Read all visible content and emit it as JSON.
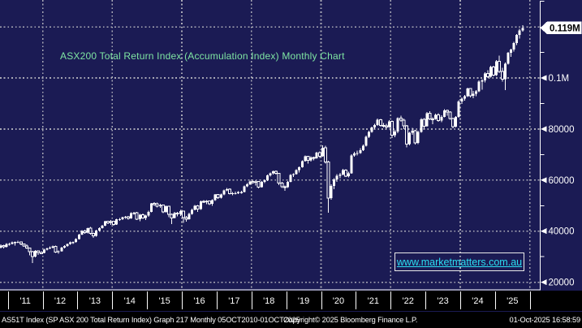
{
  "colors": {
    "background": "#1b1b54",
    "candle": "#ffffff",
    "grid": "#a9a9b6",
    "title_green": "#7fe6a3",
    "link_cyan": "#2bdff2",
    "axis_text": "#ffffff",
    "band_bg": "#000000",
    "tag_bg": "#ffffff",
    "tag_text": "#000000"
  },
  "title": {
    "text": "ASX200 Total Return Index (Accumulation Index) Monthly Chart"
  },
  "watermark": {
    "text": "www.marketmatters.com.au"
  },
  "y_axis": {
    "labels": [
      {
        "value": 20000,
        "text": "20000"
      },
      {
        "value": 40000,
        "text": "40000"
      },
      {
        "value": 60000,
        "text": "60000"
      },
      {
        "value": 80000,
        "text": "80000"
      },
      {
        "value": 100000,
        "text": "0.1M"
      }
    ],
    "minor_tick_values": [
      30000,
      50000,
      70000,
      90000,
      110000,
      130000
    ],
    "last_price": {
      "value": 119600,
      "label": "0.119M"
    }
  },
  "x_axis": {
    "year_labels": [
      "'11",
      "'12",
      "'13",
      "'14",
      "'15",
      "'16",
      "'17",
      "'18",
      "'19",
      "'20",
      "'21",
      "'22",
      "'23",
      "'24",
      "'25"
    ]
  },
  "status_bar": {
    "left": "AS51T Index (SP ASX 200 Total Return Index) Graph 217  Monthly 05OCT2010-01OCT2025",
    "center": "Copyright© 2025 Bloomberg Finance L.P.",
    "right": "01-Oct-2025 16:58:59"
  },
  "chart_data": {
    "type": "candlestick",
    "title": "ASX200 Total Return Index (Accumulation Index) Monthly Chart",
    "instrument": "AS51T Index (SP ASX 200 Total Return Index)",
    "frequency": "monthly",
    "range": "05OCT2010-01OCT2025",
    "months_start": "2010-10",
    "last_price": 119600,
    "ylim": [
      17000,
      130500
    ],
    "grid_values": [
      20000,
      40000,
      60000,
      80000,
      100000,
      120000
    ],
    "legend_position": "none",
    "ohlc": [
      [
        33600,
        34800,
        33200,
        34400
      ],
      [
        34400,
        34700,
        33300,
        33800
      ],
      [
        33800,
        35300,
        33500,
        35000
      ],
      [
        35000,
        35400,
        34400,
        35000
      ],
      [
        35000,
        35900,
        34800,
        35600
      ],
      [
        35600,
        35900,
        34300,
        35700
      ],
      [
        35700,
        36200,
        35300,
        35800
      ],
      [
        35800,
        36000,
        34500,
        34900
      ],
      [
        34900,
        35100,
        33900,
        34200
      ],
      [
        34200,
        34800,
        33000,
        33400
      ],
      [
        33400,
        33600,
        30600,
        32000
      ],
      [
        32000,
        32300,
        27500,
        30000
      ],
      [
        30000,
        32600,
        29700,
        32200
      ],
      [
        32200,
        32500,
        30700,
        31600
      ],
      [
        31600,
        32100,
        31000,
        31500
      ],
      [
        31500,
        33100,
        31300,
        32800
      ],
      [
        32800,
        33600,
        32500,
        33200
      ],
      [
        33200,
        34000,
        32900,
        33600
      ],
      [
        33600,
        34400,
        33300,
        34100
      ],
      [
        34100,
        34300,
        31500,
        31800
      ],
      [
        31800,
        32400,
        31200,
        32100
      ],
      [
        32100,
        33800,
        31900,
        33500
      ],
      [
        33500,
        34500,
        33300,
        34200
      ],
      [
        34200,
        35200,
        33900,
        34900
      ],
      [
        34900,
        35900,
        34700,
        35600
      ],
      [
        35600,
        36000,
        34900,
        35700
      ],
      [
        35700,
        37200,
        35500,
        36900
      ],
      [
        36900,
        39000,
        36800,
        38700
      ],
      [
        38700,
        40400,
        38500,
        40100
      ],
      [
        40100,
        40600,
        39000,
        39400
      ],
      [
        39400,
        41400,
        39100,
        41100
      ],
      [
        41100,
        41600,
        38700,
        39100
      ],
      [
        39100,
        39400,
        37400,
        38100
      ],
      [
        38100,
        40500,
        37900,
        40200
      ],
      [
        40200,
        41500,
        39900,
        41200
      ],
      [
        41200,
        42500,
        41000,
        42100
      ],
      [
        42100,
        44100,
        41900,
        43800
      ],
      [
        43800,
        44100,
        42700,
        43200
      ],
      [
        43200,
        44300,
        42500,
        43900
      ],
      [
        43900,
        44100,
        42200,
        42600
      ],
      [
        42600,
        44900,
        42400,
        44600
      ],
      [
        44600,
        45100,
        44000,
        44700
      ],
      [
        44700,
        45700,
        44400,
        45400
      ],
      [
        45400,
        46000,
        44900,
        45700
      ],
      [
        45700,
        46000,
        44500,
        45000
      ],
      [
        45000,
        47300,
        44800,
        47000
      ],
      [
        47000,
        47600,
        46400,
        47200
      ],
      [
        47200,
        47500,
        44400,
        44700
      ],
      [
        44700,
        46800,
        43900,
        46500
      ],
      [
        46500,
        46900,
        44900,
        45200
      ],
      [
        45200,
        46500,
        44300,
        46100
      ],
      [
        46100,
        48000,
        45600,
        47600
      ],
      [
        47600,
        51100,
        47400,
        50800
      ],
      [
        50800,
        51400,
        50000,
        50700
      ],
      [
        50700,
        51200,
        49300,
        49800
      ],
      [
        49800,
        50700,
        49100,
        50200
      ],
      [
        50200,
        50400,
        47000,
        47500
      ],
      [
        47500,
        50100,
        47200,
        49700
      ],
      [
        49700,
        50000,
        45400,
        46600
      ],
      [
        46600,
        46900,
        42800,
        45200
      ],
      [
        45200,
        47500,
        45000,
        47100
      ],
      [
        47100,
        47600,
        45800,
        46700
      ],
      [
        46700,
        48300,
        45900,
        47900
      ],
      [
        47900,
        48000,
        43300,
        45300
      ],
      [
        45300,
        45900,
        43700,
        44700
      ],
      [
        44700,
        47200,
        44500,
        46800
      ],
      [
        46800,
        48800,
        46500,
        48400
      ],
      [
        48400,
        50200,
        48100,
        49900
      ],
      [
        49900,
        50200,
        47600,
        48600
      ],
      [
        48600,
        52000,
        48400,
        51700
      ],
      [
        51700,
        52200,
        51000,
        51500
      ],
      [
        51500,
        52100,
        50600,
        51800
      ],
      [
        51800,
        52000,
        50300,
        50700
      ],
      [
        50700,
        52400,
        49900,
        52100
      ],
      [
        52100,
        54600,
        51900,
        54300
      ],
      [
        54300,
        54500,
        52700,
        53100
      ],
      [
        53100,
        54700,
        52800,
        54300
      ],
      [
        54300,
        56300,
        54100,
        56000
      ],
      [
        56000,
        56900,
        55600,
        56500
      ],
      [
        56500,
        56700,
        54300,
        54700
      ],
      [
        54700,
        55400,
        54100,
        54900
      ],
      [
        54900,
        55500,
        54300,
        54900
      ],
      [
        54900,
        55700,
        54500,
        55300
      ],
      [
        55300,
        55800,
        54700,
        55300
      ],
      [
        55300,
        57800,
        55200,
        57500
      ],
      [
        57500,
        58800,
        57200,
        58400
      ],
      [
        58400,
        59700,
        58100,
        59400
      ],
      [
        59400,
        59700,
        58600,
        59100
      ],
      [
        59100,
        59900,
        57900,
        59400
      ],
      [
        59400,
        59600,
        56700,
        57200
      ],
      [
        57200,
        59600,
        57000,
        59300
      ],
      [
        59300,
        60200,
        58800,
        59900
      ],
      [
        59900,
        62100,
        59600,
        61800
      ],
      [
        61800,
        62900,
        61400,
        62600
      ],
      [
        62600,
        63700,
        62100,
        63400
      ],
      [
        63400,
        63700,
        62200,
        62600
      ],
      [
        62600,
        62800,
        58000,
        58800
      ],
      [
        58800,
        59300,
        56900,
        57400
      ],
      [
        57400,
        57800,
        55800,
        57200
      ],
      [
        57200,
        59600,
        56900,
        59300
      ],
      [
        59300,
        62300,
        59100,
        62000
      ],
      [
        62000,
        62700,
        61200,
        62400
      ],
      [
        62400,
        64200,
        62200,
        63900
      ],
      [
        63900,
        65300,
        62900,
        65000
      ],
      [
        65000,
        67700,
        64800,
        67400
      ],
      [
        67400,
        69700,
        67200,
        69300
      ],
      [
        69300,
        69500,
        66500,
        67700
      ],
      [
        67700,
        69300,
        67300,
        68900
      ],
      [
        68900,
        69200,
        67800,
        68600
      ],
      [
        68600,
        71100,
        68400,
        70800
      ],
      [
        70800,
        71200,
        68700,
        69300
      ],
      [
        69300,
        73600,
        69100,
        72700
      ],
      [
        72700,
        73400,
        66400,
        67100
      ],
      [
        67100,
        67600,
        47200,
        53000
      ],
      [
        53000,
        58300,
        52300,
        57700
      ],
      [
        57700,
        60700,
        56500,
        60200
      ],
      [
        60200,
        62400,
        59300,
        61700
      ],
      [
        61700,
        62800,
        60800,
        62100
      ],
      [
        62100,
        64400,
        61800,
        63900
      ],
      [
        63900,
        64200,
        61200,
        61600
      ],
      [
        61600,
        63300,
        61000,
        62700
      ],
      [
        62700,
        70100,
        62500,
        69600
      ],
      [
        69600,
        71000,
        69100,
        70400
      ],
      [
        70400,
        71500,
        69700,
        70600
      ],
      [
        70600,
        72500,
        70200,
        71700
      ],
      [
        71700,
        74000,
        71400,
        73400
      ],
      [
        73400,
        77400,
        73200,
        77000
      ],
      [
        77000,
        79300,
        76500,
        78800
      ],
      [
        78800,
        81000,
        78500,
        80600
      ],
      [
        80600,
        82000,
        80000,
        81500
      ],
      [
        81500,
        84100,
        81200,
        83600
      ],
      [
        83600,
        84000,
        80900,
        81400
      ],
      [
        81400,
        82300,
        80600,
        81300
      ],
      [
        81300,
        82100,
        79900,
        80800
      ],
      [
        80800,
        83400,
        80500,
        83000
      ],
      [
        83000,
        83300,
        76400,
        77600
      ],
      [
        77600,
        79600,
        76800,
        79000
      ],
      [
        79000,
        84600,
        78400,
        84200
      ],
      [
        84200,
        85200,
        82900,
        83500
      ],
      [
        83500,
        84100,
        79900,
        81300
      ],
      [
        81300,
        81600,
        72800,
        74100
      ],
      [
        74100,
        78900,
        73600,
        78500
      ],
      [
        78500,
        80500,
        77800,
        79400
      ],
      [
        79400,
        79700,
        74000,
        74500
      ],
      [
        74500,
        79300,
        74100,
        78900
      ],
      [
        78900,
        84200,
        78600,
        83800
      ],
      [
        83800,
        84300,
        80200,
        81100
      ],
      [
        81100,
        86600,
        80900,
        86200
      ],
      [
        86200,
        86900,
        83400,
        84000
      ],
      [
        84000,
        84600,
        81800,
        83900
      ],
      [
        83900,
        86000,
        83600,
        85500
      ],
      [
        85500,
        86100,
        82800,
        83300
      ],
      [
        83300,
        85300,
        82600,
        84800
      ],
      [
        84800,
        87700,
        84500,
        87300
      ],
      [
        87300,
        87600,
        85200,
        86600
      ],
      [
        86600,
        87000,
        83600,
        84100
      ],
      [
        84100,
        84400,
        80300,
        80900
      ],
      [
        80900,
        85100,
        80600,
        84700
      ],
      [
        84700,
        91200,
        84400,
        90800
      ],
      [
        90800,
        92300,
        89800,
        91900
      ],
      [
        91900,
        93400,
        91100,
        92900
      ],
      [
        92900,
        96200,
        92600,
        95800
      ],
      [
        95800,
        96100,
        92400,
        93000
      ],
      [
        93000,
        94900,
        92100,
        93800
      ],
      [
        93800,
        95200,
        92900,
        94700
      ],
      [
        94700,
        99000,
        94400,
        98600
      ],
      [
        98600,
        99600,
        95400,
        99100
      ],
      [
        99100,
        102300,
        98300,
        101800
      ],
      [
        101800,
        103000,
        100000,
        100500
      ],
      [
        100500,
        104800,
        100200,
        104300
      ],
      [
        104300,
        104700,
        100600,
        101100
      ],
      [
        101100,
        107000,
        100800,
        106500
      ],
      [
        106500,
        108800,
        101900,
        102500
      ],
      [
        102500,
        104000,
        98600,
        99500
      ],
      [
        99500,
        106100,
        95300,
        105500
      ],
      [
        105500,
        110100,
        105200,
        109800
      ],
      [
        109800,
        111500,
        108200,
        111200
      ],
      [
        111200,
        114100,
        110400,
        113600
      ],
      [
        113600,
        117200,
        112900,
        116800
      ],
      [
        116800,
        119200,
        115400,
        118600
      ],
      [
        118600,
        120700,
        118200,
        119600
      ]
    ]
  }
}
